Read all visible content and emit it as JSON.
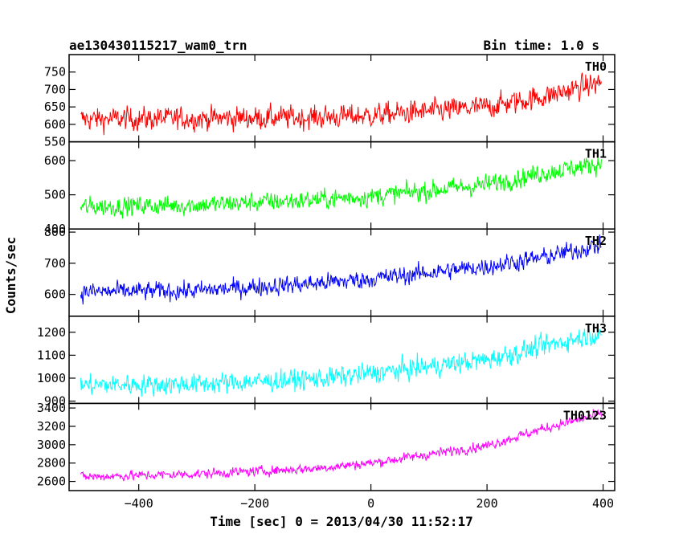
{
  "chart_data": {
    "type": "line",
    "title": "ae130430115217_wam0_trn",
    "subtitle": "Bin time: 1.0 s",
    "xlabel": "Time [sec] 0 = 2013/04/30 11:52:17",
    "ylabel": "Counts/sec",
    "xlim": [
      -520,
      420
    ],
    "x_ticks": [
      -400,
      -200,
      0,
      200,
      400
    ],
    "x_tick_labels": [
      "−400",
      "−200",
      "0",
      "200",
      "400"
    ],
    "x_data_range": [
      -500,
      397
    ],
    "bin_time_sec": 1.0,
    "grid": false,
    "legend": "panel labels at top-right",
    "series": [
      {
        "name": "TH0",
        "color": "#ff0000",
        "ylim": [
          550,
          800
        ],
        "ticks": [
          550,
          600,
          650,
          700,
          750
        ],
        "tick_labels": [
          "550",
          "600",
          "650",
          "700",
          "750"
        ],
        "trend": [
          [
            -500,
            615
          ],
          [
            -300,
            617
          ],
          [
            -100,
            620
          ],
          [
            0,
            625
          ],
          [
            200,
            650
          ],
          [
            300,
            680
          ],
          [
            400,
            722
          ]
        ],
        "scatter": 28
      },
      {
        "name": "TH1",
        "color": "#00ff00",
        "ylim": [
          400,
          655
        ],
        "ticks": [
          400,
          500,
          600
        ],
        "tick_labels": [
          "400",
          "500",
          "600"
        ],
        "trend": [
          [
            -500,
            465
          ],
          [
            -300,
            470
          ],
          [
            -100,
            485
          ],
          [
            0,
            495
          ],
          [
            200,
            530
          ],
          [
            300,
            565
          ],
          [
            400,
            592
          ]
        ],
        "scatter": 24
      },
      {
        "name": "TH2",
        "color": "#0000ff",
        "ylim": [
          530,
          810
        ],
        "ticks": [
          600,
          700,
          800
        ],
        "tick_labels": [
          "600",
          "700",
          "800"
        ],
        "trend": [
          [
            -500,
            608
          ],
          [
            -300,
            612
          ],
          [
            -100,
            635
          ],
          [
            0,
            650
          ],
          [
            200,
            690
          ],
          [
            300,
            720
          ],
          [
            400,
            760
          ]
        ],
        "scatter": 25
      },
      {
        "name": "TH3",
        "color": "#00ffff",
        "ylim": [
          890,
          1270
        ],
        "ticks": [
          900,
          1000,
          1100,
          1200
        ],
        "tick_labels": [
          "900",
          "1000",
          "1100",
          "1200"
        ],
        "trend": [
          [
            -500,
            970
          ],
          [
            -300,
            975
          ],
          [
            -100,
            995
          ],
          [
            0,
            1020
          ],
          [
            200,
            1080
          ],
          [
            300,
            1140
          ],
          [
            400,
            1200
          ]
        ],
        "scatter": 38
      },
      {
        "name": "TH0123",
        "color": "#ff00ff",
        "ylim": [
          2500,
          3450
        ],
        "ticks": [
          2600,
          2800,
          3000,
          3200,
          3400
        ],
        "tick_labels": [
          "2600",
          "2800",
          "3000",
          "3200",
          "3400"
        ],
        "trend": [
          [
            -500,
            2650
          ],
          [
            -300,
            2680
          ],
          [
            -100,
            2740
          ],
          [
            0,
            2800
          ],
          [
            200,
            2990
          ],
          [
            300,
            3180
          ],
          [
            400,
            3340
          ]
        ],
        "scatter": 45
      }
    ]
  }
}
